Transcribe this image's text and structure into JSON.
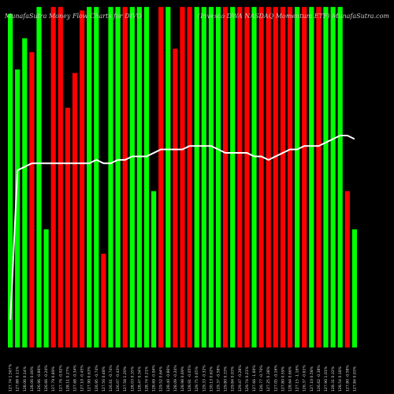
{
  "header": {
    "left": "MunafaSutra  Money Flow  Charts for DIVO",
    "right": "(Invesco DWA NASDAQ Momentum ETF)  MunafaSutra.com"
  },
  "chart_data": {
    "type": "bar",
    "ylim": [
      0,
      100
    ],
    "grid": false,
    "categories": [
      "127.74 1.567%",
      "127.88 0.11%",
      "128.06 0.14%",
      "128.06 0.00%",
      "126.96 -0.86%",
      "126.66 -0.24%",
      "127.79 0.89%",
      "127.76 -0.02%",
      "128.11 0.27%",
      "127.68 -0.34%",
      "127.10 -0.45%",
      "127.90 0.63%",
      "126.95 -0.74%",
      "127.56 0.48%",
      "126.61 -0.74%",
      "126.07 -0.43%",
      "127.58 1.20%",
      "128.03 0.35%",
      "128.47 0.34%",
      "128.74 0.21%",
      "128.69 -0.04%",
      "129.52 0.64%",
      "128.40 -0.86%",
      "128.09 -0.24%",
      "128.98 0.69%",
      "128.91 -0.05%",
      "129.75 0.65%",
      "129.33 -0.32%",
      "130.13 0.62%",
      "129.37 -0.58%",
      "129.80 0.33%",
      "129.84 0.03%",
      "129.47 -0.28%",
      "129.74 0.21%",
      "127.66 -1.60%",
      "126.77 -0.70%",
      "127.25 0.38%",
      "127.05 -0.16%",
      "127.80 0.59%",
      "128.64 0.66%",
      "127.15 -1.16%",
      "126.37 -0.61%",
      "127.10 0.58%",
      "126.62 -0.38%",
      "127.90 1.01%",
      "128.31 0.32%",
      "128.54 0.18%",
      "127.80 -0.58%",
      "127.84 0.03%"
    ],
    "series": [
      {
        "values": [
          96,
          80,
          89,
          85,
          98,
          34,
          98,
          98,
          69,
          79,
          97,
          98,
          98,
          27,
          98,
          98,
          98,
          98,
          98,
          98,
          45,
          98,
          98,
          86,
          98,
          98,
          98,
          98,
          98,
          98,
          98,
          98,
          98,
          98,
          98,
          98,
          98,
          98,
          98,
          98,
          98,
          98,
          98,
          98,
          98,
          98,
          98,
          45,
          34
        ],
        "colors": [
          "#00ff00",
          "#00ff00",
          "#00ff00",
          "#ff0000",
          "#00ff00",
          "#00ff00",
          "#ff0000",
          "#ff0000",
          "#ff0000",
          "#ff0000",
          "#ff0000",
          "#00ff00",
          "#00ff00",
          "#ff0000",
          "#00ff00",
          "#00ff00",
          "#ff0000",
          "#00ff00",
          "#00ff00",
          "#00ff00",
          "#00ff00",
          "#ff0000",
          "#00ff00",
          "#ff0000",
          "#ff0000",
          "#ff0000",
          "#00ff00",
          "#00ff00",
          "#00ff00",
          "#00ff00",
          "#ff0000",
          "#00ff00",
          "#ff0000",
          "#ff0000",
          "#00ff00",
          "#ff0000",
          "#ff0000",
          "#ff0000",
          "#ff0000",
          "#ff0000",
          "#00ff00",
          "#ff0000",
          "#00ff00",
          "#ff0000",
          "#00ff00",
          "#00ff00",
          "#00ff00",
          "#ff0000",
          "#00ff00"
        ]
      },
      {
        "values": [
          8,
          51,
          52,
          53,
          53,
          53,
          53,
          53,
          53,
          53,
          53,
          53,
          54,
          53,
          53,
          54,
          54,
          55,
          55,
          55,
          56,
          57,
          57,
          57,
          57,
          58,
          58,
          58,
          58,
          57,
          56,
          56,
          56,
          56,
          55,
          55,
          54,
          55,
          56,
          57,
          57,
          58,
          58,
          58,
          59,
          60,
          61,
          61,
          60
        ],
        "color": "#ffffff"
      }
    ]
  }
}
